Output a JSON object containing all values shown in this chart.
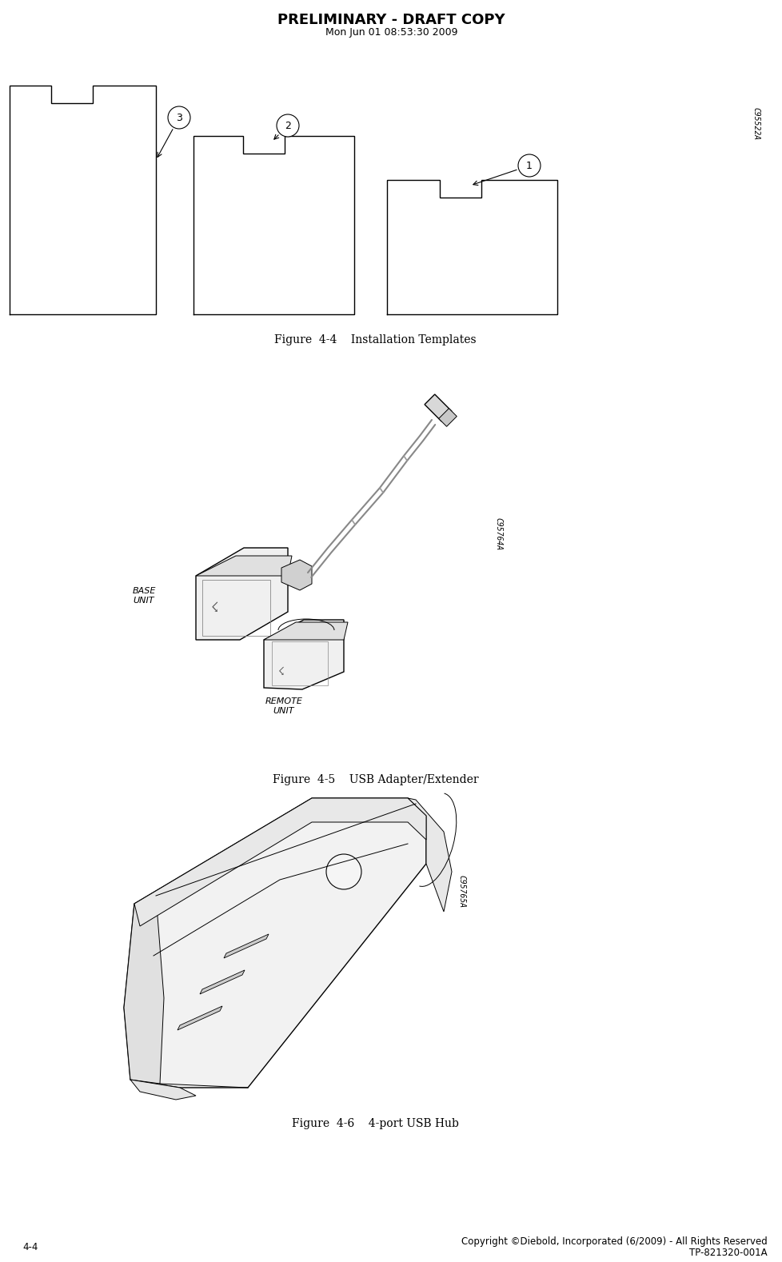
{
  "bg_color": "#ffffff",
  "title": "PRELIMINARY - DRAFT COPY",
  "subtitle": "Mon Jun 01 08:53:30 2009",
  "title_fontsize": 13,
  "subtitle_fontsize": 9,
  "fig4_4_caption": "Figure  4-4    Installation Templates",
  "fig4_5_caption": "Figure  4-5    USB Adapter/Extender",
  "fig4_6_caption": "Figure  4-6    4-port USB Hub",
  "footer_left": "4-4",
  "footer_right1": "Copyright ©Diebold, Incorporated (6/2009) - All Rights Reserved",
  "footer_right2": "TP-821320-001A",
  "watermark1": "C95522A",
  "watermark2": "C95764A",
  "watermark3": "C95765A",
  "caption_fontsize": 10,
  "footer_fontsize": 8.5,
  "base_unit_label": "BASE\nUNIT",
  "remote_unit_label": "REMOTE\nUNIT"
}
